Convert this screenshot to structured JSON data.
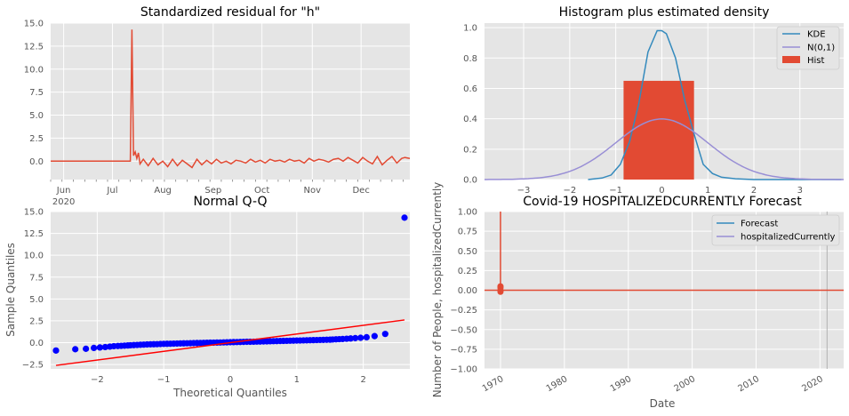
{
  "colors": {
    "axes_bg": "#E5E5E5",
    "grid": "#FFFFFF",
    "tick_text": "#555555",
    "red": "#E24A33",
    "blue": "#348ABD",
    "purple": "#988ED5",
    "qq_points": "#0000FF",
    "qq_line": "#FF0000",
    "vline": "#B0B0B0"
  },
  "chart_data": [
    {
      "id": "residual",
      "type": "line",
      "title": "Standardized residual for \"h\"",
      "xlabel": "",
      "ylabel": "",
      "ylim": [
        -2,
        15
      ],
      "yticks": [
        "-2.5",
        "0.0",
        "2.5",
        "5.0",
        "7.5",
        "10.0",
        "12.5",
        "15.0"
      ],
      "ytick_values": [
        -2.5,
        0,
        2.5,
        5,
        7.5,
        10,
        12.5,
        15
      ],
      "xticks": [
        "Jun",
        "Jul",
        "Aug",
        "Sep",
        "Oct",
        "Nov",
        "Dec"
      ],
      "xtick_sub": [
        "2020",
        "",
        "",
        "",
        "",
        "",
        ""
      ],
      "x_start": "2020-05-24",
      "x_end": "2020-12-31",
      "month_starts": [
        "2020-06-01",
        "2020-07-01",
        "2020-08-01",
        "2020-09-01",
        "2020-10-01",
        "2020-11-01",
        "2020-12-01"
      ],
      "series": [
        {
          "color": "#E24A33",
          "x": [
            "2020-05-24",
            "2020-07-05",
            "2020-07-12",
            "2020-07-13",
            "2020-07-14",
            "2020-07-15",
            "2020-07-16",
            "2020-07-17",
            "2020-07-18",
            "2020-07-20",
            "2020-07-23",
            "2020-07-26",
            "2020-07-29",
            "2020-08-01",
            "2020-08-04",
            "2020-08-07",
            "2020-08-10",
            "2020-08-13",
            "2020-08-16",
            "2020-08-19",
            "2020-08-22",
            "2020-08-25",
            "2020-08-28",
            "2020-08-31",
            "2020-09-03",
            "2020-09-06",
            "2020-09-09",
            "2020-09-12",
            "2020-09-15",
            "2020-09-18",
            "2020-09-21",
            "2020-09-24",
            "2020-09-27",
            "2020-09-30",
            "2020-10-03",
            "2020-10-06",
            "2020-10-09",
            "2020-10-12",
            "2020-10-15",
            "2020-10-18",
            "2020-10-21",
            "2020-10-24",
            "2020-10-27",
            "2020-10-30",
            "2020-11-02",
            "2020-11-05",
            "2020-11-08",
            "2020-11-11",
            "2020-11-14",
            "2020-11-17",
            "2020-11-20",
            "2020-11-23",
            "2020-11-26",
            "2020-11-29",
            "2020-12-02",
            "2020-12-05",
            "2020-12-08",
            "2020-12-11",
            "2020-12-14",
            "2020-12-17",
            "2020-12-20",
            "2020-12-23",
            "2020-12-26",
            "2020-12-28",
            "2020-12-31"
          ],
          "y": [
            0,
            0,
            0,
            14.3,
            0.6,
            1.0,
            0.3,
            0.9,
            -0.3,
            0.2,
            -0.5,
            0.3,
            -0.4,
            0.0,
            -0.6,
            0.2,
            -0.5,
            0.1,
            -0.3,
            -0.7,
            0.2,
            -0.4,
            0.1,
            -0.3,
            0.2,
            -0.2,
            0.0,
            -0.3,
            0.1,
            0.0,
            -0.2,
            0.2,
            -0.1,
            0.1,
            -0.2,
            0.2,
            0.0,
            0.1,
            -0.1,
            0.2,
            0.0,
            0.1,
            -0.2,
            0.3,
            0.0,
            0.2,
            0.1,
            -0.1,
            0.2,
            0.3,
            0.0,
            0.4,
            0.1,
            -0.2,
            0.4,
            0.0,
            -0.3,
            0.5,
            -0.4,
            0.1,
            0.5,
            -0.2,
            0.3,
            0.4,
            0.3
          ]
        }
      ]
    },
    {
      "id": "histogram",
      "type": "bar",
      "title": "Histogram plus estimated density",
      "xlabel": "",
      "ylabel": "",
      "xlim": [
        -3.85,
        3.95
      ],
      "ylim": [
        0,
        1.03
      ],
      "xticks": [
        -3,
        -2,
        -1,
        0,
        1,
        2,
        3
      ],
      "xtick_labels": [
        "−3",
        "−2",
        "−1",
        "0",
        "1",
        "2",
        "3"
      ],
      "yticks": [
        0,
        0.2,
        0.4,
        0.6,
        0.8,
        1.0
      ],
      "ytick_labels": [
        "0.0",
        "0.2",
        "0.4",
        "0.6",
        "0.8",
        "1.0"
      ],
      "legend_position": "top-right",
      "hist": {
        "name": "Hist",
        "color": "#E24A33",
        "x0": -0.83,
        "x1": 0.7,
        "height": 0.65
      },
      "series": [
        {
          "name": "KDE",
          "color": "#348ABD",
          "x": [
            -1.6,
            -1.3,
            -1.1,
            -0.9,
            -0.7,
            -0.5,
            -0.3,
            -0.1,
            0.0,
            0.1,
            0.3,
            0.5,
            0.7,
            0.9,
            1.1,
            1.3,
            1.6,
            2.0,
            3.9
          ],
          "y": [
            0.0,
            0.01,
            0.03,
            0.1,
            0.25,
            0.5,
            0.84,
            0.98,
            0.98,
            0.96,
            0.8,
            0.52,
            0.3,
            0.1,
            0.04,
            0.015,
            0.005,
            0.0,
            0.0
          ]
        },
        {
          "name": "N(0,1)",
          "color": "#988ED5",
          "curve": "normal-pdf",
          "mean": 0,
          "std": 1
        }
      ]
    },
    {
      "id": "qq",
      "type": "scatter",
      "title": "Normal Q-Q",
      "xlabel": "Theoretical Quantiles",
      "ylabel": "Sample Quantiles",
      "xlim": [
        -2.7,
        2.7
      ],
      "ylim": [
        -3,
        15
      ],
      "xticks": [
        -2,
        -1,
        0,
        1,
        2
      ],
      "xtick_labels": [
        "−2",
        "−1",
        "0",
        "1",
        "2"
      ],
      "yticks": [
        -2.5,
        0,
        2.5,
        5,
        7.5,
        10,
        12.5,
        15
      ],
      "ytick_labels": [
        "−2.5",
        "0.0",
        "2.5",
        "5.0",
        "7.5",
        "10.0",
        "12.5",
        "15.0"
      ],
      "point_color": "#0000FF",
      "line_color": "#FF0000",
      "ref_line": {
        "x": [
          -2.62,
          2.62
        ],
        "y": [
          -2.6,
          2.6
        ]
      },
      "points": {
        "x": [
          -2.62,
          -2.33,
          -2.17,
          -2.05,
          -1.96,
          -1.88,
          -1.81,
          -1.75,
          -1.69,
          -1.64,
          -1.59,
          -1.54,
          -1.5,
          -1.45,
          -1.4,
          -1.35,
          -1.3,
          -1.25,
          -1.2,
          -1.15,
          -1.1,
          -1.05,
          -1.0,
          -0.95,
          -0.9,
          -0.85,
          -0.8,
          -0.75,
          -0.7,
          -0.65,
          -0.6,
          -0.55,
          -0.5,
          -0.45,
          -0.4,
          -0.35,
          -0.3,
          -0.25,
          -0.2,
          -0.15,
          -0.1,
          -0.05,
          0.0,
          0.05,
          0.1,
          0.15,
          0.2,
          0.25,
          0.3,
          0.35,
          0.4,
          0.45,
          0.5,
          0.55,
          0.6,
          0.65,
          0.7,
          0.75,
          0.8,
          0.85,
          0.9,
          0.95,
          1.0,
          1.05,
          1.1,
          1.15,
          1.2,
          1.25,
          1.3,
          1.35,
          1.4,
          1.45,
          1.5,
          1.54,
          1.59,
          1.64,
          1.69,
          1.75,
          1.81,
          1.88,
          1.96,
          2.05,
          2.17,
          2.33,
          2.62
        ],
        "y": [
          -0.9,
          -0.75,
          -0.7,
          -0.6,
          -0.55,
          -0.5,
          -0.45,
          -0.4,
          -0.38,
          -0.36,
          -0.34,
          -0.32,
          -0.3,
          -0.28,
          -0.26,
          -0.24,
          -0.22,
          -0.2,
          -0.19,
          -0.18,
          -0.17,
          -0.15,
          -0.14,
          -0.13,
          -0.12,
          -0.11,
          -0.1,
          -0.09,
          -0.08,
          -0.07,
          -0.06,
          -0.05,
          -0.04,
          -0.03,
          -0.02,
          -0.01,
          0.0,
          0.0,
          0.01,
          0.02,
          0.03,
          0.04,
          0.05,
          0.06,
          0.07,
          0.08,
          0.09,
          0.1,
          0.1,
          0.11,
          0.12,
          0.13,
          0.14,
          0.15,
          0.16,
          0.17,
          0.18,
          0.19,
          0.2,
          0.21,
          0.22,
          0.23,
          0.24,
          0.25,
          0.26,
          0.27,
          0.28,
          0.29,
          0.3,
          0.31,
          0.32,
          0.33,
          0.34,
          0.36,
          0.38,
          0.4,
          0.42,
          0.45,
          0.48,
          0.52,
          0.56,
          0.62,
          0.75,
          1.0,
          14.3
        ]
      }
    },
    {
      "id": "forecast",
      "type": "line",
      "title": "Covid-19 HOSPITALIZEDCURRENTLY Forecast",
      "xlabel": "Date",
      "ylabel": "Number of People, hospitalizedCurrently",
      "xlim": [
        1967.5,
        2023.7
      ],
      "ylim": [
        -1.0,
        1.0
      ],
      "xticks": [
        1970,
        1980,
        1990,
        2000,
        2010,
        2020
      ],
      "xtick_labels": [
        "1970",
        "1980",
        "1990",
        "2000",
        "2010",
        "2020"
      ],
      "yticks": [
        -1.0,
        -0.75,
        -0.5,
        -0.25,
        0.0,
        0.25,
        0.5,
        0.75,
        1.0
      ],
      "ytick_labels": [
        "−1.00",
        "−0.75",
        "−0.50",
        "−0.25",
        "0.00",
        "0.25",
        "0.50",
        "0.75",
        "1.00"
      ],
      "legend_position": "top-right",
      "vline_x": 2021.1,
      "series": [
        {
          "name": "Forecast",
          "color": "#348ABD"
        },
        {
          "name": "hospitalizedCurrently",
          "color": "#988ED5"
        }
      ],
      "drawn": {
        "color": "#E24A33",
        "hline_y": 0.0,
        "spike_x": 1970,
        "spike_y": [
          0.0,
          1.0
        ],
        "marker_x": 1970,
        "marker_y": [
          0.0,
          0.03,
          0.05,
          -0.02
        ]
      }
    }
  ]
}
